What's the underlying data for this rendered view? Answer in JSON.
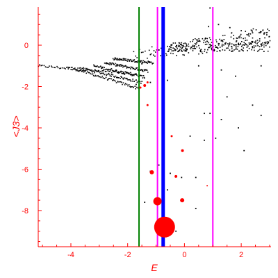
{
  "chart_data": {
    "type": "scatter",
    "title": "",
    "xlabel": "E",
    "ylabel": "<J3>",
    "xlim": [
      -5.15,
      3.05
    ],
    "ylim": [
      -9.75,
      1.85
    ],
    "x_ticks": [
      -4,
      -2,
      0,
      2
    ],
    "y_ticks": [
      0,
      -2,
      -4,
      -6,
      -8
    ],
    "grid": false,
    "colors": {
      "axis": "#ff0000",
      "points": "#000000",
      "markers": "#ff0000",
      "line_green": "#008000",
      "line_magenta": "#ff00ff",
      "line_blue": "#0000ff"
    },
    "vertical_lines": [
      {
        "x": -1.6,
        "color": "#008000",
        "width": 2
      },
      {
        "x": -0.95,
        "color": "#ff00ff",
        "width": 2
      },
      {
        "x": -0.75,
        "color": "#0000ff",
        "width": 5
      },
      {
        "x": 1.0,
        "color": "#ff00ff",
        "width": 2
      }
    ],
    "black_series_seeds": [
      {
        "start": [
          -5.15,
          -1.0
        ],
        "end": [
          -1.7,
          -1.4
        ],
        "spread": 0.02
      },
      {
        "start": [
          -4.1,
          -1.05
        ],
        "end": [
          -1.6,
          -2.1
        ],
        "spread": 0.02
      },
      {
        "start": [
          -3.7,
          -1.1
        ],
        "end": [
          -1.5,
          -1.8
        ],
        "spread": 0.02
      },
      {
        "start": [
          -3.2,
          -1.0
        ],
        "end": [
          -1.4,
          -1.55
        ],
        "spread": 0.02
      },
      {
        "start": [
          -2.8,
          -0.85
        ],
        "end": [
          -1.3,
          -1.25
        ],
        "spread": 0.02
      },
      {
        "start": [
          -2.5,
          -0.65
        ],
        "end": [
          -1.1,
          -0.85
        ],
        "spread": 0.02
      },
      {
        "start": [
          -1.8,
          -0.45
        ],
        "end": [
          3.0,
          0.05
        ],
        "spread": 0.08
      },
      {
        "start": [
          -1.2,
          -0.3
        ],
        "end": [
          3.0,
          0.2
        ],
        "spread": 0.1
      }
    ],
    "black_scatter_points": [
      [
        0.9,
        1.8
      ],
      [
        0.85,
        0.9
      ],
      [
        1.2,
        1.0
      ],
      [
        1.6,
        0.85
      ],
      [
        2.0,
        0.7
      ],
      [
        2.4,
        0.6
      ],
      [
        2.9,
        0.5
      ],
      [
        2.8,
        -0.3
      ],
      [
        2.7,
        -1.0
      ],
      [
        1.3,
        -1.2
      ],
      [
        1.8,
        -1.5
      ],
      [
        0.5,
        -1.0
      ],
      [
        1.5,
        -2.5
      ],
      [
        2.4,
        -2.9
      ],
      [
        2.7,
        -3.4
      ],
      [
        0.7,
        -3.3
      ],
      [
        0.9,
        -3.3
      ],
      [
        1.3,
        -3.6
      ],
      [
        1.9,
        -4.0
      ],
      [
        0.2,
        -4.4
      ],
      [
        0.7,
        -4.6
      ],
      [
        1.1,
        -4.5
      ],
      [
        2.1,
        -5.1
      ],
      [
        -0.1,
        -6.4
      ],
      [
        0.4,
        -6.4
      ],
      [
        -0.5,
        -6.2
      ],
      [
        -0.9,
        -5.8
      ],
      [
        -1.2,
        -6.1
      ],
      [
        -0.6,
        -7.0
      ],
      [
        0.4,
        -7.9
      ],
      [
        -1.4,
        -7.6
      ],
      [
        -0.3,
        -9.0
      ],
      [
        -1.5,
        -0.9
      ],
      [
        -1.7,
        -1.9
      ],
      [
        -1.2,
        -1.8
      ],
      [
        -0.6,
        -1.7
      ]
    ],
    "red_markers": [
      {
        "x": -0.7,
        "y": -8.8,
        "size": 15
      },
      {
        "x": -0.95,
        "y": -7.55,
        "size": 6
      },
      {
        "x": -0.08,
        "y": -7.5,
        "size": 3
      },
      {
        "x": -1.15,
        "y": -6.15,
        "size": 3
      },
      {
        "x": -0.3,
        "y": -6.35,
        "size": 2
      },
      {
        "x": -0.07,
        "y": -5.1,
        "size": 2
      },
      {
        "x": -0.45,
        "y": -4.4,
        "size": 1.5
      },
      {
        "x": -1.3,
        "y": -1.8,
        "size": 1.5
      },
      {
        "x": -1.4,
        "y": -1.95,
        "size": 2
      },
      {
        "x": -1.55,
        "y": -2.05,
        "size": 1.5
      },
      {
        "x": -1.3,
        "y": -2.9,
        "size": 1.5
      },
      {
        "x": 0.8,
        "y": -6.8,
        "size": 1
      }
    ]
  }
}
